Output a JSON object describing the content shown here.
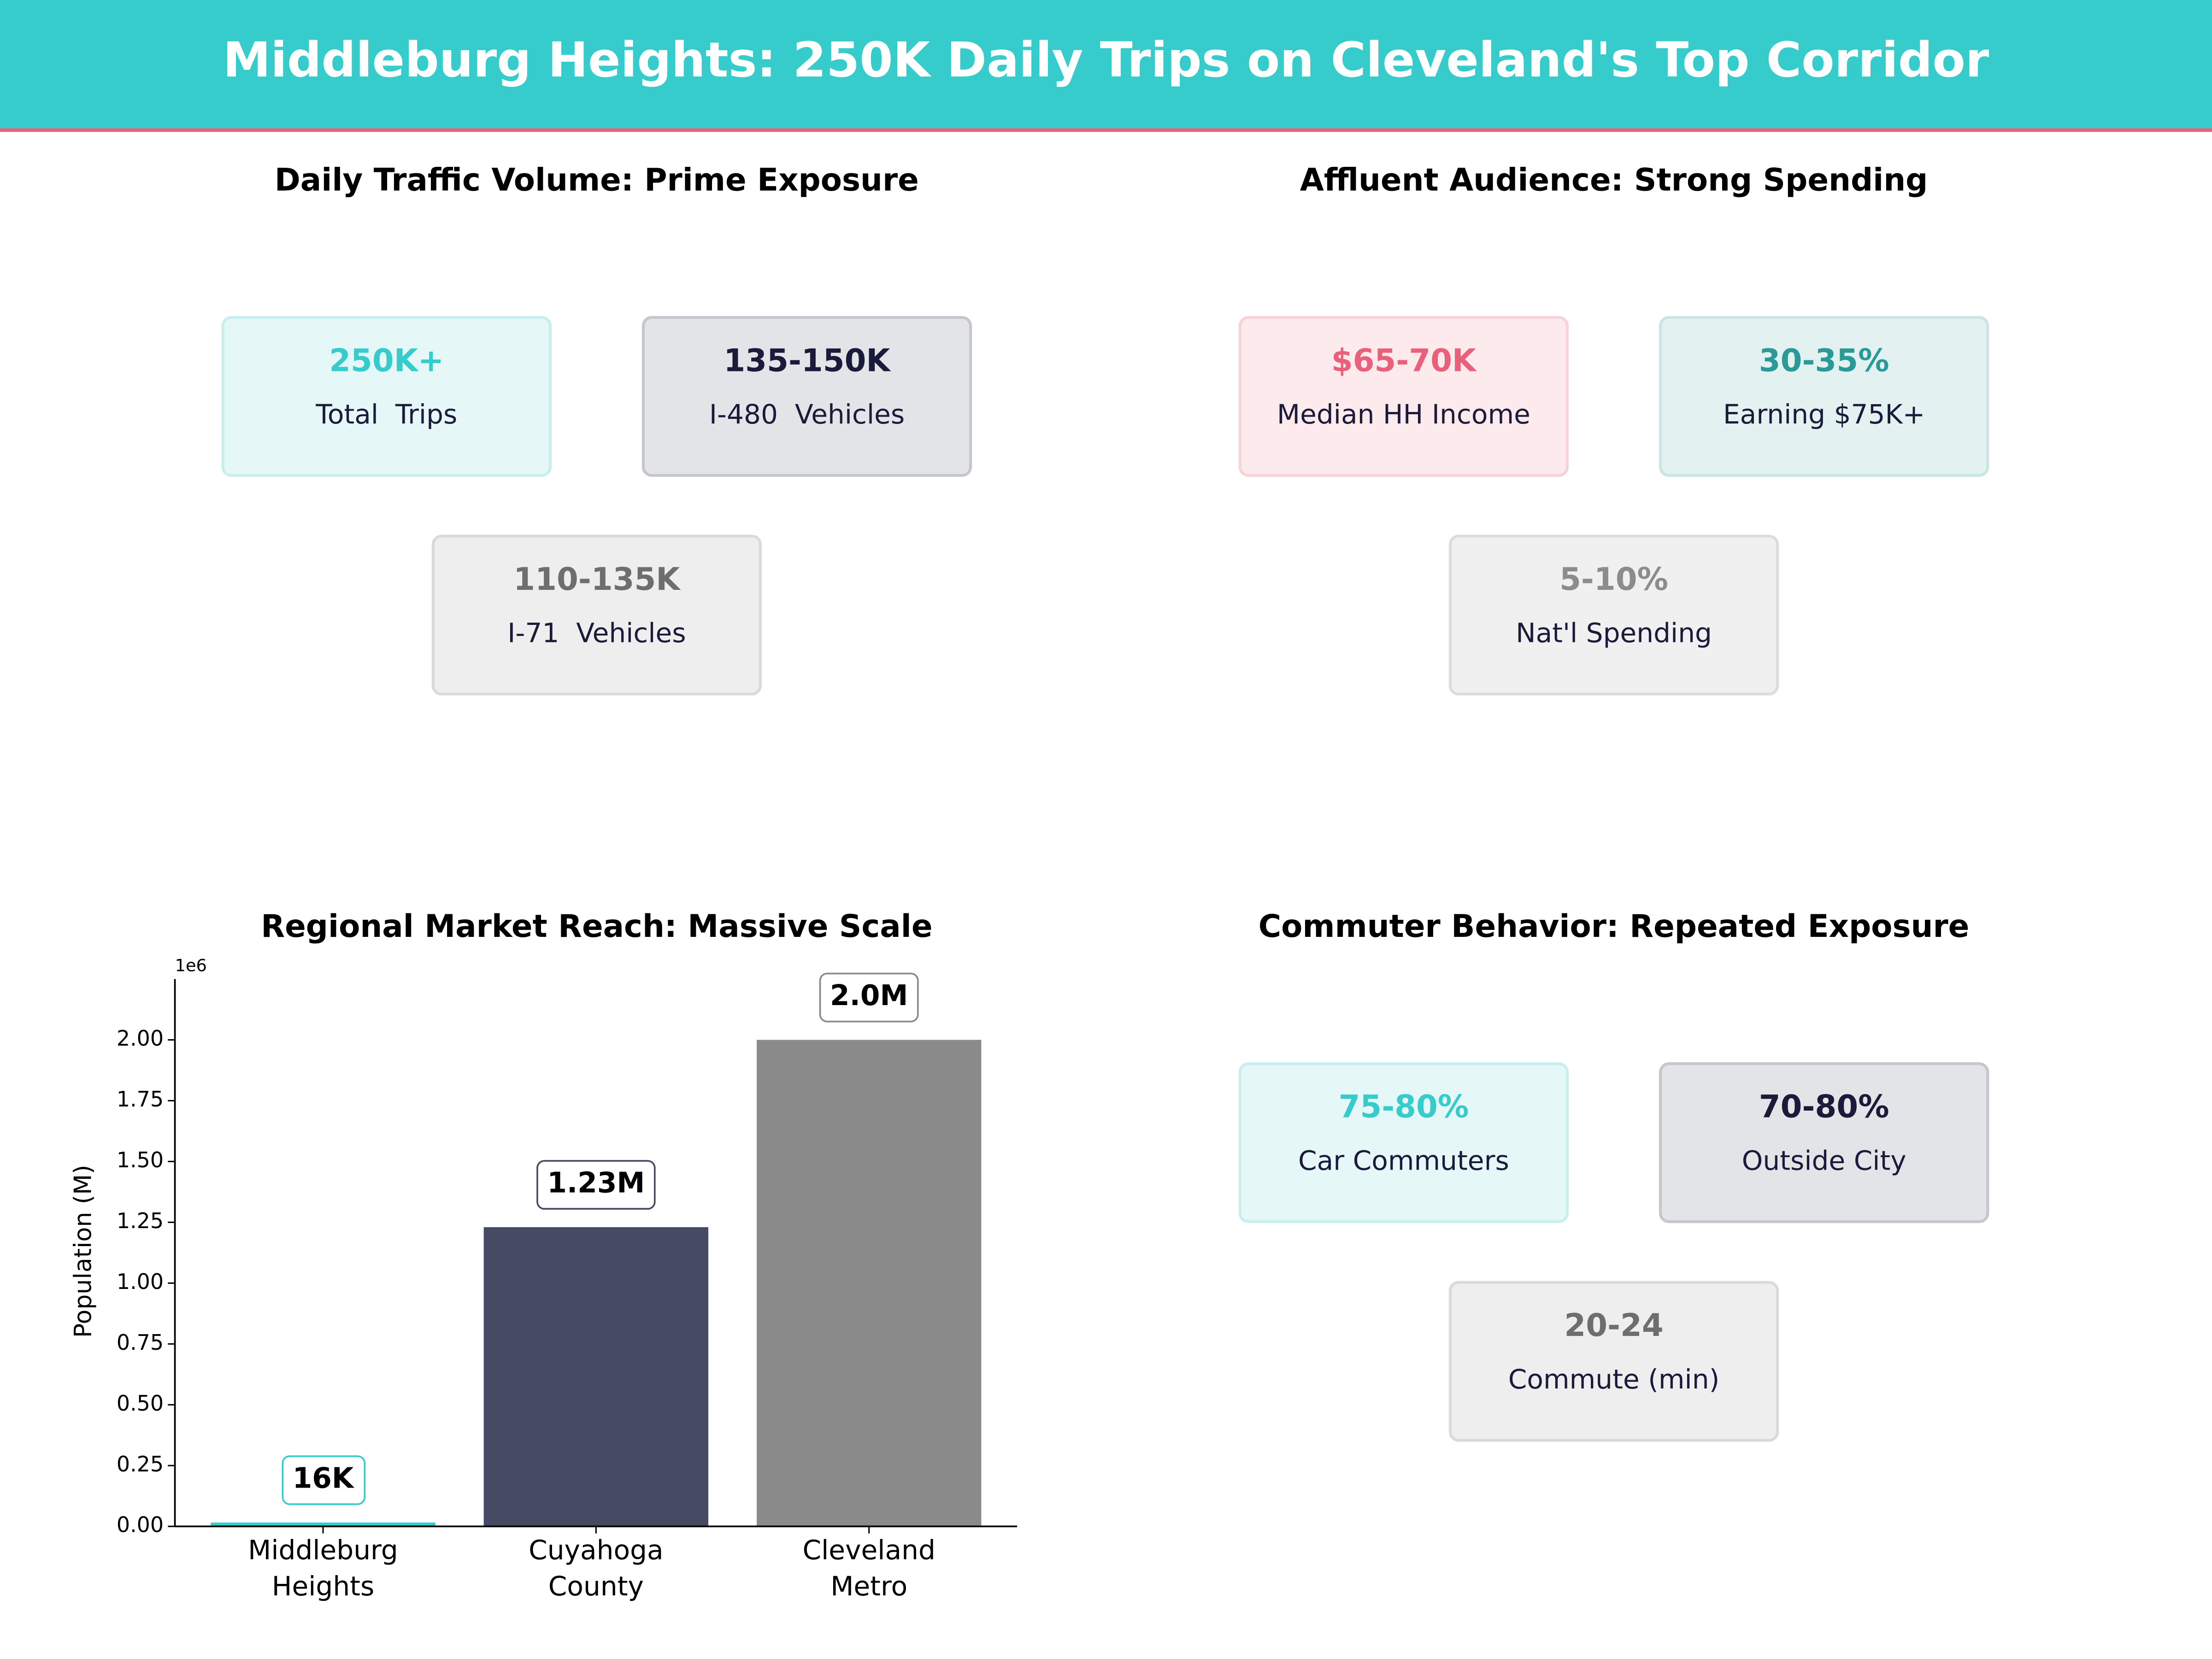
{
  "title": "Middleburg Heights: 250K Daily Trips on Cleveland's Top Corridor",
  "traffic": {
    "title": "Daily Traffic Volume: Prime Exposure",
    "cards": [
      {
        "value": "250K+",
        "label": "Total  Trips",
        "color": "#36cccc",
        "background": "#e5f7f7",
        "border": "#c9eeee"
      },
      {
        "value": "135-150K",
        "label": "I-480  Vehicles",
        "color": "#1a1a3a",
        "background": "#e3e4e8",
        "border": "#c6c7cc"
      },
      {
        "value": "110-135K",
        "label": "I-71  Vehicles",
        "color": "#6e6e6e",
        "background": "#eeeeee",
        "border": "#dadada"
      }
    ]
  },
  "audience": {
    "title": "Affluent Audience: Strong Spending",
    "cards": [
      {
        "value": "$65-70K",
        "label": "Median HH Income",
        "color": "#e8607a",
        "background": "#fdeaed",
        "border": "#f6d2d9"
      },
      {
        "value": "30-35%",
        "label": "Earning $75K+",
        "color": "#2a9a98",
        "background": "#e3f1f0",
        "border": "#cbe5e3"
      },
      {
        "value": "5-10%",
        "label": "Nat'l Spending",
        "color": "#8c8c8c",
        "background": "#f0f0f0",
        "border": "#dcdcdc"
      }
    ]
  },
  "chart_data": {
    "type": "bar",
    "title": "Regional Market Reach: Massive Scale",
    "y_label": "Population (M)",
    "y_offset_label": "1e6",
    "categories": [
      "Middleburg\nHeights",
      "Cuyahoga\nCounty",
      "Cleveland\nMetro"
    ],
    "values": [
      16000,
      1230000,
      2000000
    ],
    "value_labels": [
      "16K",
      "1.23M",
      "2.0M"
    ],
    "colors": [
      "#36cccc",
      "#464a62",
      "#8a8a8a"
    ],
    "ylim": [
      0,
      2250000
    ],
    "yticks": [
      {
        "value": 0,
        "label": "0.00"
      },
      {
        "value": 250000,
        "label": "0.25"
      },
      {
        "value": 500000,
        "label": "0.50"
      },
      {
        "value": 750000,
        "label": "0.75"
      },
      {
        "value": 1000000,
        "label": "1.00"
      },
      {
        "value": 1250000,
        "label": "1.25"
      },
      {
        "value": 1500000,
        "label": "1.50"
      },
      {
        "value": 1750000,
        "label": "1.75"
      },
      {
        "value": 2000000,
        "label": "2.00"
      }
    ]
  },
  "commuter": {
    "title": "Commuter Behavior: Repeated Exposure",
    "cards": [
      {
        "value": "75-80%",
        "label": "Car Commuters",
        "color": "#36cccc",
        "background": "#e5f7f7",
        "border": "#c9eeee"
      },
      {
        "value": "70-80%",
        "label": "Outside City",
        "color": "#1a1a3a",
        "background": "#e3e4e8",
        "border": "#c6c7cc"
      },
      {
        "value": "20-24",
        "label": "Commute (min)",
        "color": "#6e6e6e",
        "background": "#eeeeee",
        "border": "#dadada"
      }
    ]
  }
}
